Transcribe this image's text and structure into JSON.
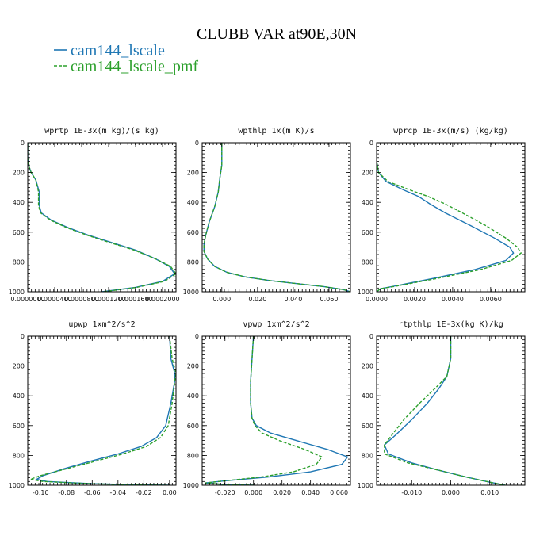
{
  "figure": {
    "title": "CLUBB VAR at90E,30N",
    "legend": [
      {
        "name": "cam144_lscale",
        "color": "#1f77b4",
        "dash": "solid"
      },
      {
        "name": "cam144_lscale_pmf",
        "color": "#2ca02c",
        "dash": "dashed"
      }
    ]
  },
  "chart_data": [
    {
      "type": "line",
      "title": "wprtp  1E-3x(m kg)/(s kg)",
      "xlim": [
        0.0,
        0.00022
      ],
      "ylim": [
        1000,
        0
      ],
      "x_ticks": [
        0.0,
        4e-05,
        8e-05,
        0.00012,
        0.00016,
        0.0002
      ],
      "x_tick_labels": [
        "0.0000000",
        "0.0000400",
        "0.0000800",
        "0.0001200",
        "0.0001600",
        "0.0002000"
      ],
      "y_ticks": [
        0,
        200,
        400,
        600,
        800,
        1000
      ],
      "y_tick_labels": [
        "0",
        "200",
        "400",
        "600",
        "800",
        "1000"
      ],
      "series": [
        {
          "name": "cam144_lscale",
          "x": [
            0.0,
            0.0,
            1e-06,
            5e-06,
            1.2e-05,
            1.7e-05,
            1.7e-05,
            2e-05,
            3.5e-05,
            6e-05,
            9e-05,
            0.000125,
            0.00016,
            0.00019,
            0.00021,
            0.000218,
            0.0002,
            0.00016,
            0.00011
          ],
          "y": [
            0,
            100,
            150,
            200,
            250,
            330,
            420,
            470,
            520,
            570,
            620,
            670,
            720,
            780,
            830,
            880,
            930,
            970,
            1000
          ]
        },
        {
          "name": "cam144_lscale_pmf",
          "x": [
            0.0,
            0.0,
            1e-06,
            5e-06,
            1.2e-05,
            1.6e-05,
            1.6e-05,
            1.9e-05,
            3.4e-05,
            5.8e-05,
            8.8e-05,
            0.000122,
            0.000158,
            0.00019,
            0.000212,
            0.00022,
            0.000203,
            0.000162,
            0.000112
          ],
          "y": [
            0,
            100,
            150,
            200,
            250,
            330,
            420,
            470,
            520,
            570,
            620,
            670,
            720,
            780,
            830,
            880,
            930,
            970,
            1000
          ]
        }
      ]
    },
    {
      "type": "line",
      "title": "wpthlp  1x(m K)/s",
      "xlim": [
        -0.011,
        0.072
      ],
      "ylim": [
        1000,
        0
      ],
      "x_ticks": [
        0.0,
        0.02,
        0.04,
        0.06
      ],
      "x_tick_labels": [
        "0.000",
        "0.020",
        "0.040",
        "0.060"
      ],
      "y_ticks": [
        0,
        200,
        400,
        600,
        800,
        1000
      ],
      "y_tick_labels": [
        "0",
        "200",
        "400",
        "600",
        "800",
        "1000"
      ],
      "series": [
        {
          "name": "cam144_lscale",
          "x": [
            0.0,
            0.0,
            -0.001,
            -0.002,
            -0.004,
            -0.007,
            -0.009,
            -0.01,
            -0.01,
            -0.008,
            -0.004,
            0.003,
            0.013,
            0.027,
            0.042,
            0.057,
            0.068,
            0.072
          ],
          "y": [
            0,
            150,
            230,
            330,
            430,
            530,
            620,
            680,
            730,
            780,
            830,
            870,
            900,
            925,
            945,
            965,
            985,
            1000
          ]
        },
        {
          "name": "cam144_lscale_pmf",
          "x": [
            0.0,
            0.0,
            -0.001,
            -0.002,
            -0.004,
            -0.007,
            -0.009,
            -0.01,
            -0.01,
            -0.008,
            -0.004,
            0.003,
            0.013,
            0.027,
            0.042,
            0.057,
            0.068,
            0.072
          ],
          "y": [
            0,
            150,
            230,
            330,
            430,
            530,
            620,
            680,
            730,
            780,
            830,
            870,
            900,
            925,
            945,
            965,
            985,
            1000
          ]
        }
      ]
    },
    {
      "type": "line",
      "title": "wprcp  1E-3x(m/s) (kg/kg)",
      "xlim": [
        0.0,
        0.0078
      ],
      "ylim": [
        1000,
        0
      ],
      "x_ticks": [
        0.0,
        0.002,
        0.004,
        0.006
      ],
      "x_tick_labels": [
        "0.0000",
        "0.0020",
        "0.0040",
        "0.0060"
      ],
      "y_ticks": [
        0,
        200,
        400,
        600,
        800,
        1000
      ],
      "y_tick_labels": [
        "0",
        "200",
        "400",
        "600",
        "800",
        "1000"
      ],
      "series": [
        {
          "name": "cam144_lscale",
          "x": [
            0.0,
            0.0,
            0.0001,
            0.0005,
            0.0013,
            0.0022,
            0.0028,
            0.0036,
            0.005,
            0.0062,
            0.007,
            0.0072,
            0.0068,
            0.0052,
            0.003,
            0.001,
            0.0002,
            0.0
          ],
          "y": [
            0,
            120,
            200,
            260,
            310,
            360,
            410,
            470,
            560,
            640,
            700,
            740,
            790,
            850,
            910,
            960,
            980,
            1000
          ]
        },
        {
          "name": "cam144_lscale_pmf",
          "x": [
            0.0,
            0.0,
            0.0001,
            0.0006,
            0.0016,
            0.0027,
            0.0036,
            0.0045,
            0.0058,
            0.0068,
            0.0074,
            0.0076,
            0.0071,
            0.0055,
            0.0032,
            0.0011,
            0.0002,
            0.0
          ],
          "y": [
            0,
            120,
            200,
            260,
            310,
            360,
            410,
            470,
            560,
            640,
            700,
            740,
            790,
            850,
            910,
            960,
            980,
            1000
          ]
        }
      ]
    },
    {
      "type": "line",
      "title": "upwp  1xm^2/s^2",
      "xlim": [
        -0.11,
        0.005
      ],
      "ylim": [
        1000,
        0
      ],
      "x_ticks": [
        -0.1,
        -0.08,
        -0.06,
        -0.04,
        -0.02,
        0.0
      ],
      "x_tick_labels": [
        "-0.10",
        "-0.08",
        "-0.06",
        "-0.04",
        "-0.02",
        "0.00"
      ],
      "y_ticks": [
        0,
        200,
        400,
        600,
        800,
        1000
      ],
      "y_tick_labels": [
        "0",
        "200",
        "400",
        "600",
        "800",
        "1000"
      ],
      "series": [
        {
          "name": "cam144_lscale",
          "x": [
            0.0,
            0.001,
            0.004,
            0.004,
            0.001,
            -0.003,
            -0.01,
            -0.022,
            -0.04,
            -0.062,
            -0.082,
            -0.098,
            -0.103,
            -0.095,
            -0.06,
            -0.02,
            0.0
          ],
          "y": [
            0,
            150,
            250,
            300,
            450,
            600,
            680,
            740,
            790,
            840,
            890,
            935,
            960,
            975,
            990,
            998,
            1000
          ]
        },
        {
          "name": "cam144_lscale_pmf",
          "x": [
            0.0,
            0.002,
            0.005,
            0.004,
            0.002,
            -0.001,
            -0.007,
            -0.018,
            -0.036,
            -0.058,
            -0.08,
            -0.1,
            -0.108,
            -0.098,
            -0.062,
            -0.021,
            0.0
          ],
          "y": [
            0,
            150,
            250,
            300,
            450,
            600,
            680,
            740,
            790,
            840,
            890,
            935,
            960,
            975,
            990,
            998,
            1000
          ]
        }
      ]
    },
    {
      "type": "line",
      "title": "vpwp  1xm^2/s^2",
      "xlim": [
        -0.036,
        0.068
      ],
      "ylim": [
        1000,
        0
      ],
      "x_ticks": [
        -0.02,
        0.0,
        0.02,
        0.04,
        0.06
      ],
      "x_tick_labels": [
        "-0.020",
        "0.000",
        "0.020",
        "0.040",
        "0.060"
      ],
      "y_ticks": [
        0,
        200,
        400,
        600,
        800,
        1000
      ],
      "y_tick_labels": [
        "0",
        "200",
        "400",
        "600",
        "800",
        "1000"
      ],
      "series": [
        {
          "name": "cam144_lscale",
          "x": [
            0.0,
            -0.001,
            -0.002,
            -0.002,
            -0.001,
            0.002,
            0.012,
            0.03,
            0.052,
            0.066,
            0.062,
            0.04,
            0.01,
            -0.02,
            -0.034,
            -0.02,
            0.0
          ],
          "y": [
            0,
            150,
            300,
            450,
            550,
            600,
            650,
            700,
            760,
            810,
            860,
            910,
            945,
            970,
            985,
            995,
            1000
          ]
        },
        {
          "name": "cam144_lscale_pmf",
          "x": [
            0.0,
            -0.001,
            -0.002,
            -0.002,
            -0.001,
            0.001,
            0.006,
            0.018,
            0.036,
            0.048,
            0.044,
            0.028,
            0.005,
            -0.02,
            -0.034,
            -0.02,
            0.0
          ],
          "y": [
            0,
            150,
            300,
            450,
            550,
            600,
            650,
            700,
            760,
            810,
            860,
            910,
            945,
            970,
            985,
            995,
            1000
          ]
        }
      ]
    },
    {
      "type": "line",
      "title": "rtpthlp  1E-3x(kg K)/kg",
      "xlim": [
        -0.019,
        0.019
      ],
      "ylim": [
        1000,
        0
      ],
      "x_ticks": [
        -0.01,
        0.0,
        0.01
      ],
      "x_tick_labels": [
        "-0.010",
        "0.000",
        "0.010"
      ],
      "y_ticks": [
        0,
        200,
        400,
        600,
        800,
        1000
      ],
      "y_tick_labels": [
        "0",
        "200",
        "400",
        "600",
        "800",
        "1000"
      ],
      "series": [
        {
          "name": "cam144_lscale",
          "x": [
            0.0,
            0.0,
            -0.001,
            -0.003,
            -0.006,
            -0.01,
            -0.014,
            -0.017,
            -0.016,
            -0.01,
            -0.003,
            0.004,
            0.01,
            0.014
          ],
          "y": [
            0,
            150,
            270,
            350,
            450,
            560,
            660,
            730,
            790,
            850,
            900,
            945,
            980,
            1000
          ]
        },
        {
          "name": "cam144_lscale_pmf",
          "x": [
            0.0,
            0.0,
            -0.001,
            -0.004,
            -0.008,
            -0.012,
            -0.015,
            -0.017,
            -0.017,
            -0.011,
            -0.003,
            0.004,
            0.01,
            0.014
          ],
          "y": [
            0,
            150,
            270,
            350,
            450,
            560,
            660,
            730,
            790,
            850,
            900,
            945,
            980,
            1000
          ]
        }
      ]
    }
  ]
}
